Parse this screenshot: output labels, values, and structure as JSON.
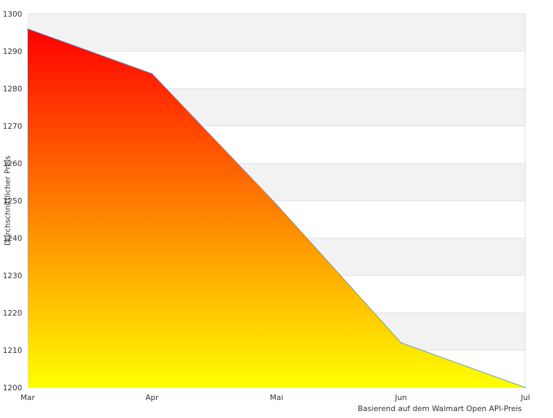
{
  "chart_data": {
    "type": "area",
    "categories": [
      "Mar",
      "Apr",
      "Mai",
      "Jun",
      "Jul"
    ],
    "values": [
      1296,
      1284,
      1249,
      1212,
      1200
    ],
    "ylabel": "Durchschnittlicher Preis",
    "xlabel": "",
    "ylim": [
      1200,
      1300
    ],
    "yticks": [
      1200,
      1210,
      1220,
      1230,
      1240,
      1250,
      1260,
      1270,
      1280,
      1290,
      1300
    ],
    "grid": "horizontal alternating bands",
    "fill_gradient": [
      "#ff0000",
      "#ffff00"
    ],
    "line_color": "#5b9bd5",
    "band_color": "#f2f2f2"
  },
  "footer": {
    "source": "Basierend auf dem Walmart Open API-Preis"
  }
}
